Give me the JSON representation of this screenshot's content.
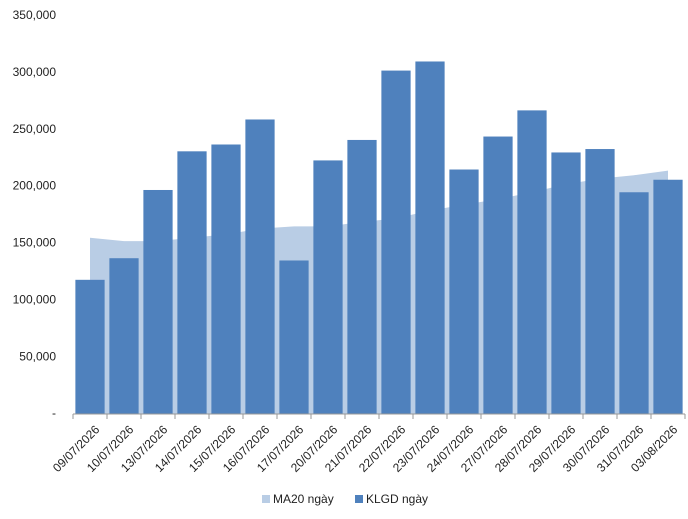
{
  "chart_data": {
    "type": "bar",
    "categories": [
      "09/07/2026",
      "10/07/2026",
      "13/07/2026",
      "14/07/2026",
      "15/07/2026",
      "16/07/2026",
      "17/07/2026",
      "20/07/2026",
      "21/07/2026",
      "22/07/2026",
      "23/07/2026",
      "24/07/2026",
      "27/07/2026",
      "28/07/2026",
      "29/07/2026",
      "30/07/2026",
      "31/07/2026",
      "03/08/2026"
    ],
    "series": [
      {
        "name": "MA20 ngày",
        "type": "area",
        "color": "#b9cde5",
        "values": [
          155000,
          152000,
          152000,
          155000,
          158000,
          163000,
          165000,
          165000,
          169000,
          172000,
          179000,
          184000,
          189000,
          195000,
          202000,
          207000,
          210000,
          214000
        ]
      },
      {
        "name": "KLGD ngày",
        "type": "bar",
        "color": "#4f81bd",
        "values": [
          118000,
          137000,
          197000,
          231000,
          237000,
          259000,
          135000,
          223000,
          241000,
          302000,
          310000,
          215000,
          244000,
          267000,
          230000,
          233000,
          195000,
          206000
        ]
      }
    ],
    "ylim": [
      0,
      350000
    ],
    "yticks": [
      {
        "value": 0,
        "label": "-"
      },
      {
        "value": 50000,
        "label": "50,000"
      },
      {
        "value": 100000,
        "label": "100,000"
      },
      {
        "value": 150000,
        "label": "150,000"
      },
      {
        "value": 200000,
        "label": "200,000"
      },
      {
        "value": 250000,
        "label": "250,000"
      },
      {
        "value": 300000,
        "label": "300,000"
      },
      {
        "value": 350000,
        "label": "350,000"
      }
    ],
    "legend": "bottom"
  }
}
